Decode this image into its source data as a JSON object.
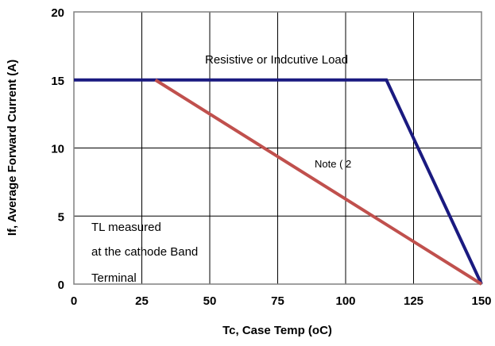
{
  "chart_data": {
    "type": "line",
    "title": "",
    "xlabel": "Tc, Case Temp (oC)",
    "ylabel": "If, Average Forward Current (A)",
    "xlim": [
      0,
      150
    ],
    "ylim": [
      0,
      20
    ],
    "xticks": [
      "0",
      "25",
      "50",
      "75",
      "100",
      "125",
      "150"
    ],
    "yticks": [
      "0",
      "5",
      "10",
      "15",
      "20"
    ],
    "grid": true,
    "series": [
      {
        "color": "#1a1a80",
        "points": [
          [
            0,
            15
          ],
          [
            115,
            15
          ],
          [
            150,
            0
          ]
        ]
      },
      {
        "color": "#c0504d",
        "points": [
          [
            30,
            15
          ],
          [
            150,
            0
          ]
        ]
      }
    ],
    "annotations": [
      {
        "id": "resistive",
        "text": "Resistive or Indcutive Load"
      },
      {
        "id": "note",
        "text": "Note  ( 2"
      },
      {
        "id": "tl1",
        "text": "TL measured"
      },
      {
        "id": "tl2",
        "text": "at the cathode Band"
      },
      {
        "id": "tl3",
        "text": "Terminal"
      }
    ]
  }
}
